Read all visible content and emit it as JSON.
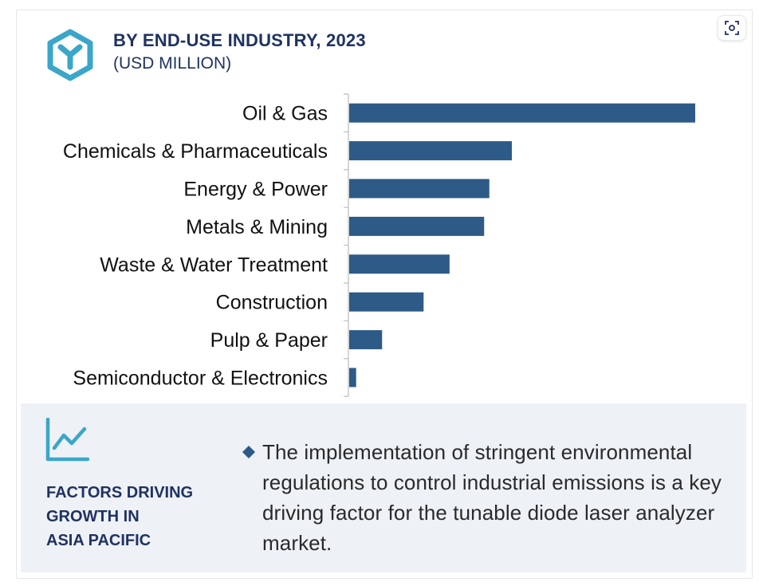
{
  "header": {
    "title": "BY END-USE INDUSTRY, 2023",
    "subtitle": "(USD MILLION)",
    "logo_icon": "hexagon-y-logo-icon",
    "focus_icon": "focus-frame-icon"
  },
  "chart_data": {
    "type": "bar",
    "orientation": "horizontal",
    "title": "BY END-USE INDUSTRY, 2023",
    "subtitle": "(USD MILLION)",
    "categories": [
      "Oil & Gas",
      "Chemicals & Pharmaceuticals",
      "Energy & Power",
      "Metals & Mining",
      "Waste & Water Treatment",
      "Construction",
      "Pulp & Paper",
      "Semiconductor & Electronics"
    ],
    "values": [
      100,
      47,
      40.5,
      39,
      29,
      21.5,
      9.5,
      2
    ],
    "xlim": [
      0,
      100
    ],
    "grid": false,
    "legend": "none",
    "bar_color": "#2d5a87"
  },
  "factors": {
    "icon": "line-chart-icon",
    "heading": "FACTORS DRIVING\nGROWTH IN\nASIA PACIFIC",
    "bullet_icon": "diamond-bullet-icon",
    "text": "The implementation of stringent environmental regulations to control industrial emissions is a key driving factor for the tunable diode laser analyzer market."
  },
  "colors": {
    "navy": "#1f3262",
    "bar": "#2d5a87",
    "accent_teal": "#3aa6c9",
    "panel_bg": "#eef1f6"
  }
}
